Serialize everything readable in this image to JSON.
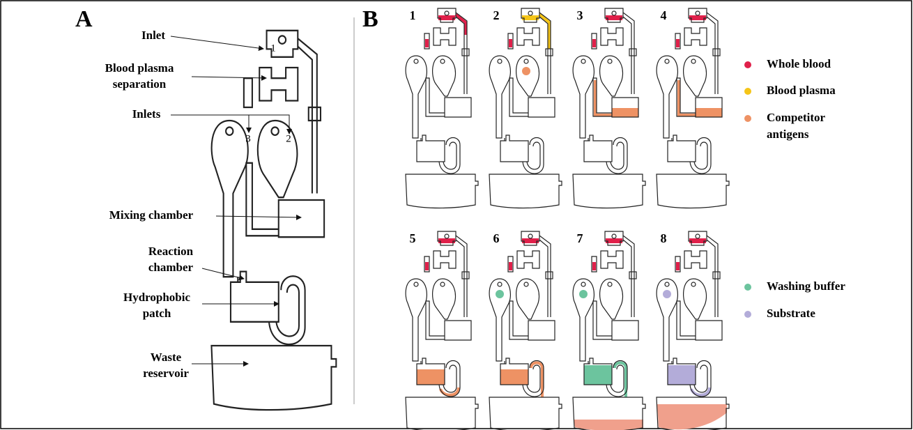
{
  "panel_a": {
    "label": "A",
    "parts": [
      {
        "lines": [
          "Inlet"
        ]
      },
      {
        "lines": [
          "Blood plasma",
          "separation"
        ]
      },
      {
        "lines": [
          "Inlets"
        ]
      },
      {
        "lines": [
          "Mixing chamber"
        ]
      },
      {
        "lines": [
          "Reaction",
          "chamber"
        ]
      },
      {
        "lines": [
          "Hydrophobic",
          "patch"
        ]
      },
      {
        "lines": [
          "Waste",
          "reservoir"
        ]
      }
    ],
    "inlet_numbers": [
      "1",
      "3",
      "2"
    ]
  },
  "panel_b": {
    "label": "B",
    "steps": [
      "1",
      "2",
      "3",
      "4",
      "5",
      "6",
      "7",
      "8"
    ],
    "legend": [
      {
        "lines": [
          "Whole blood"
        ],
        "color": "#e0204a"
      },
      {
        "lines": [
          "Blood plasma"
        ],
        "color": "#f5c518"
      },
      {
        "lines": [
          "Competitor",
          "antigens"
        ],
        "color": "#ee9264"
      },
      {
        "lines": [
          "Washing buffer"
        ],
        "color": "#6cc49e"
      },
      {
        "lines": [
          "Substrate"
        ],
        "color": "#b3acd9"
      }
    ]
  }
}
